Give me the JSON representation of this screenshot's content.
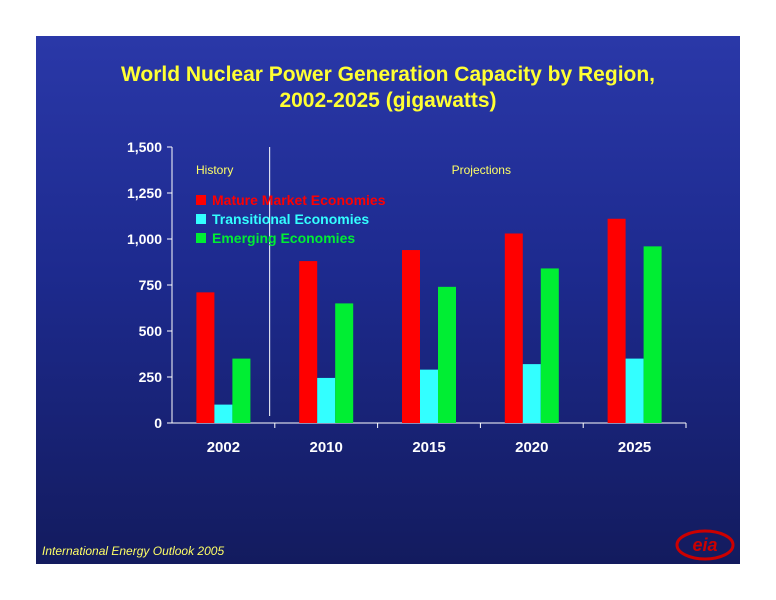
{
  "slide": {
    "title_line1": "World Nuclear Power Generation Capacity by Region,",
    "title_line2": "2002-2025 (gigawatts)",
    "source": "International Energy Outlook 2005",
    "logo_text": "eia",
    "background_color": "#1d2a8e"
  },
  "chart_data": {
    "type": "bar",
    "title": "World Nuclear Power Generation Capacity by Region, 2002-2025 (gigawatts)",
    "categories": [
      "2002",
      "2010",
      "2015",
      "2020",
      "2025"
    ],
    "series": [
      {
        "name": "Mature Market Economies",
        "color": "#ff0000",
        "values": [
          710,
          880,
          940,
          1030,
          1110
        ]
      },
      {
        "name": "Transitional Economies",
        "color": "#33ffff",
        "values": [
          100,
          245,
          290,
          320,
          350
        ]
      },
      {
        "name": "Emerging Economies",
        "color": "#00ee33",
        "values": [
          350,
          650,
          740,
          840,
          960
        ]
      }
    ],
    "ylim": [
      0,
      1500
    ],
    "yticks": [
      0,
      250,
      500,
      750,
      1000,
      1250,
      1500
    ],
    "ytick_labels": [
      "0",
      "250",
      "500",
      "750",
      "1,000",
      "1,250",
      "1,500"
    ],
    "sections": [
      {
        "label": "History"
      },
      {
        "label": "Projections"
      }
    ],
    "legend_position": "top-left",
    "grid": false
  }
}
